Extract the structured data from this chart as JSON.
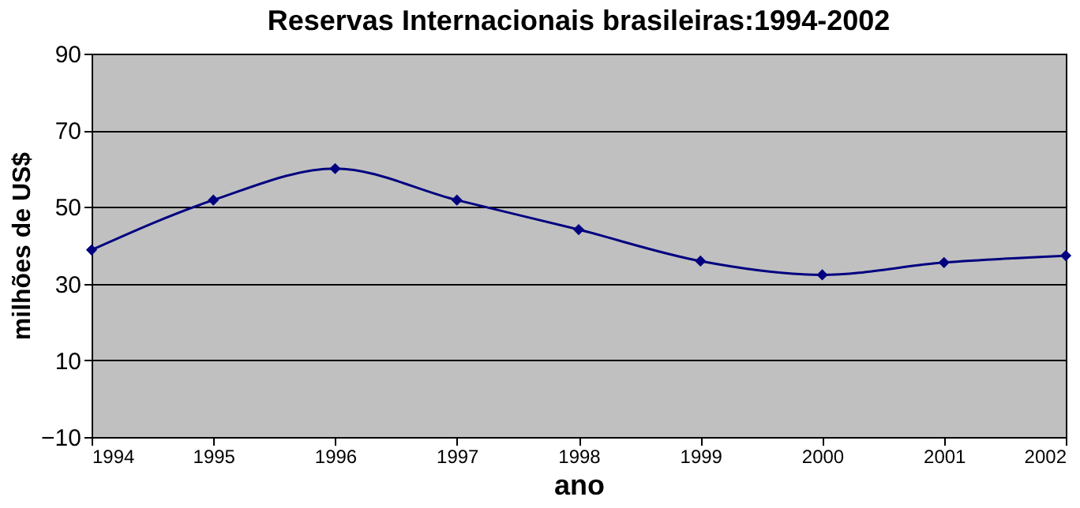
{
  "chart_data": {
    "type": "line",
    "title": "Reservas Internacionais brasileiras:1994-2002",
    "xlabel": "ano",
    "ylabel": "milhões de US$",
    "x": [
      1994,
      1995,
      1996,
      1997,
      1998,
      1999,
      2000,
      2001,
      2002
    ],
    "series": [
      {
        "color": "#000080",
        "values": [
          38.8,
          51.8,
          60,
          51.8,
          44.1,
          35.9,
          32.3,
          35.5,
          37.3
        ]
      }
    ],
    "xlim": [
      1994,
      2002
    ],
    "xticks": [
      1994,
      1995,
      1996,
      1997,
      1998,
      1999,
      2000,
      2001,
      2002
    ],
    "ylim": [
      -10,
      90
    ],
    "yticks": [
      -10,
      10,
      30,
      50,
      70,
      90
    ],
    "grid": "y",
    "marker": "diamond",
    "line_style": "solid"
  }
}
